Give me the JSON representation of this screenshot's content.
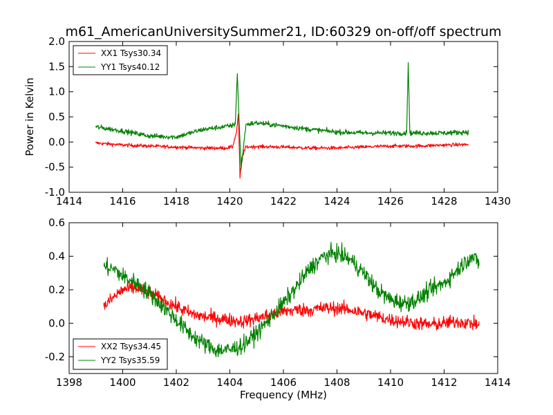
{
  "chart_data": [
    {
      "type": "line",
      "title": "m61_AmericanUniversitySummer21, ID:60329 on-off/off spectrum",
      "xlabel": "",
      "ylabel": "Power in Kelvin",
      "xlim": [
        1414,
        1430
      ],
      "ylim": [
        -1.0,
        2.0
      ],
      "x_ticks": [
        "1414",
        "1416",
        "1418",
        "1420",
        "1422",
        "1424",
        "1426",
        "1428",
        "1430"
      ],
      "y_ticks": [
        "-1.0",
        "-0.5",
        "0.0",
        "0.5",
        "1.0",
        "1.5",
        "2.0"
      ],
      "legend_position": "top-left",
      "grid": false,
      "series": [
        {
          "name": "XX1 Tsys30.34",
          "color": "#ff0000",
          "x": [
            1415.0,
            1416.0,
            1417.0,
            1418.0,
            1419.0,
            1419.8,
            1420.1,
            1420.25,
            1420.32,
            1420.38,
            1420.45,
            1420.6,
            1421.0,
            1422.0,
            1423.0,
            1424.0,
            1425.0,
            1426.0,
            1427.0,
            1428.0,
            1428.9
          ],
          "y": [
            -0.02,
            -0.06,
            -0.08,
            -0.1,
            -0.12,
            -0.12,
            -0.1,
            0.2,
            0.56,
            -0.72,
            -0.3,
            -0.1,
            -0.09,
            -0.1,
            -0.12,
            -0.12,
            -0.1,
            -0.08,
            -0.08,
            -0.06,
            -0.05
          ]
        },
        {
          "name": "YY1 Tsys40.12",
          "color": "#008000",
          "x": [
            1415.0,
            1416.0,
            1417.0,
            1418.0,
            1419.0,
            1420.0,
            1420.2,
            1420.28,
            1420.34,
            1420.42,
            1420.6,
            1421.0,
            1422.0,
            1423.0,
            1424.0,
            1425.0,
            1426.0,
            1426.6,
            1426.66,
            1426.72,
            1427.0,
            1428.0,
            1428.9
          ],
          "y": [
            0.3,
            0.22,
            0.12,
            0.1,
            0.25,
            0.32,
            0.35,
            1.36,
            0.5,
            -0.55,
            0.35,
            0.38,
            0.32,
            0.25,
            0.2,
            0.18,
            0.18,
            0.18,
            1.58,
            0.18,
            0.18,
            0.18,
            0.2
          ]
        }
      ]
    },
    {
      "type": "line",
      "title": "",
      "xlabel": "Frequency (MHz)",
      "ylabel": "",
      "xlim": [
        1398,
        1414
      ],
      "ylim": [
        -0.3,
        0.6
      ],
      "x_ticks": [
        "1398",
        "1400",
        "1402",
        "1404",
        "1406",
        "1408",
        "1410",
        "1412",
        "1414"
      ],
      "y_ticks": [
        "-0.2",
        "0.0",
        "0.2",
        "0.4",
        "0.6"
      ],
      "legend_position": "bottom-left",
      "grid": false,
      "series": [
        {
          "name": "XX2 Tsys34.45",
          "color": "#ff0000",
          "x": [
            1399.3,
            1399.7,
            1400.0,
            1400.5,
            1401.0,
            1401.5,
            1402.0,
            1402.5,
            1403.0,
            1403.5,
            1404.0,
            1404.5,
            1405.0,
            1405.5,
            1406.0,
            1406.5,
            1407.0,
            1407.5,
            1408.0,
            1408.5,
            1409.0,
            1409.5,
            1410.0,
            1410.5,
            1411.0,
            1411.5,
            1412.0,
            1412.5,
            1413.0,
            1413.3
          ],
          "y": [
            0.1,
            0.16,
            0.2,
            0.21,
            0.18,
            0.14,
            0.1,
            0.06,
            0.04,
            0.03,
            0.02,
            0.01,
            0.03,
            0.05,
            0.07,
            0.08,
            0.08,
            0.09,
            0.09,
            0.08,
            0.06,
            0.04,
            0.02,
            0.01,
            0.0,
            -0.01,
            0.0,
            0.01,
            0.0,
            -0.01
          ]
        },
        {
          "name": "YY2 Tsys35.59",
          "color": "#008000",
          "x": [
            1399.3,
            1399.7,
            1400.0,
            1400.5,
            1401.0,
            1401.5,
            1402.0,
            1402.5,
            1403.0,
            1403.5,
            1404.0,
            1404.5,
            1405.0,
            1405.5,
            1406.0,
            1406.5,
            1407.0,
            1407.5,
            1408.0,
            1408.5,
            1409.0,
            1409.5,
            1410.0,
            1410.5,
            1411.0,
            1411.5,
            1412.0,
            1412.5,
            1413.0,
            1413.3
          ],
          "y": [
            0.34,
            0.32,
            0.28,
            0.24,
            0.18,
            0.1,
            0.02,
            -0.06,
            -0.12,
            -0.16,
            -0.16,
            -0.13,
            -0.06,
            0.03,
            0.12,
            0.22,
            0.33,
            0.4,
            0.42,
            0.38,
            0.3,
            0.2,
            0.14,
            0.12,
            0.14,
            0.2,
            0.24,
            0.32,
            0.4,
            0.36
          ]
        }
      ]
    }
  ]
}
